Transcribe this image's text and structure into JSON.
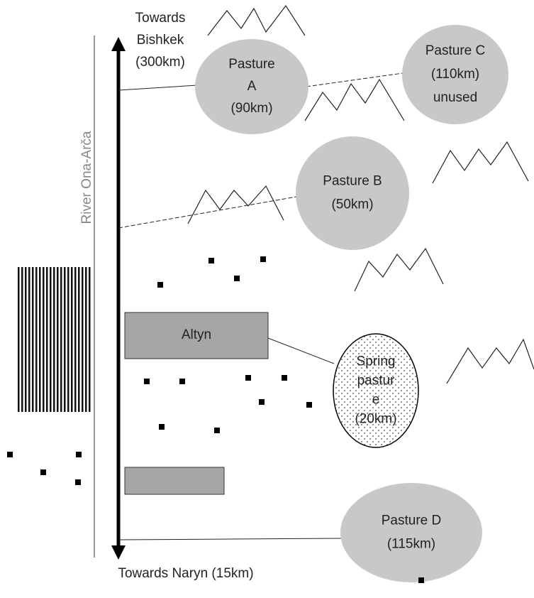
{
  "labels": {
    "north": [
      "Towards",
      "Bishkek",
      "(300km)"
    ],
    "south": "Towards Naryn (15km)",
    "river": "River Ona-Arča"
  },
  "village": "Altyn",
  "pastures": [
    {
      "lines": [
        "Pasture",
        "A",
        "(90km)"
      ]
    },
    {
      "lines": [
        "Pasture C",
        "(110km)",
        "unused"
      ]
    },
    {
      "lines": [
        "Pasture B",
        "(50km)"
      ]
    },
    {
      "lines": [
        "Spring",
        "pastur",
        "e",
        "(20km)"
      ]
    },
    {
      "lines": [
        "Pasture D",
        "(115km)"
      ]
    }
  ]
}
